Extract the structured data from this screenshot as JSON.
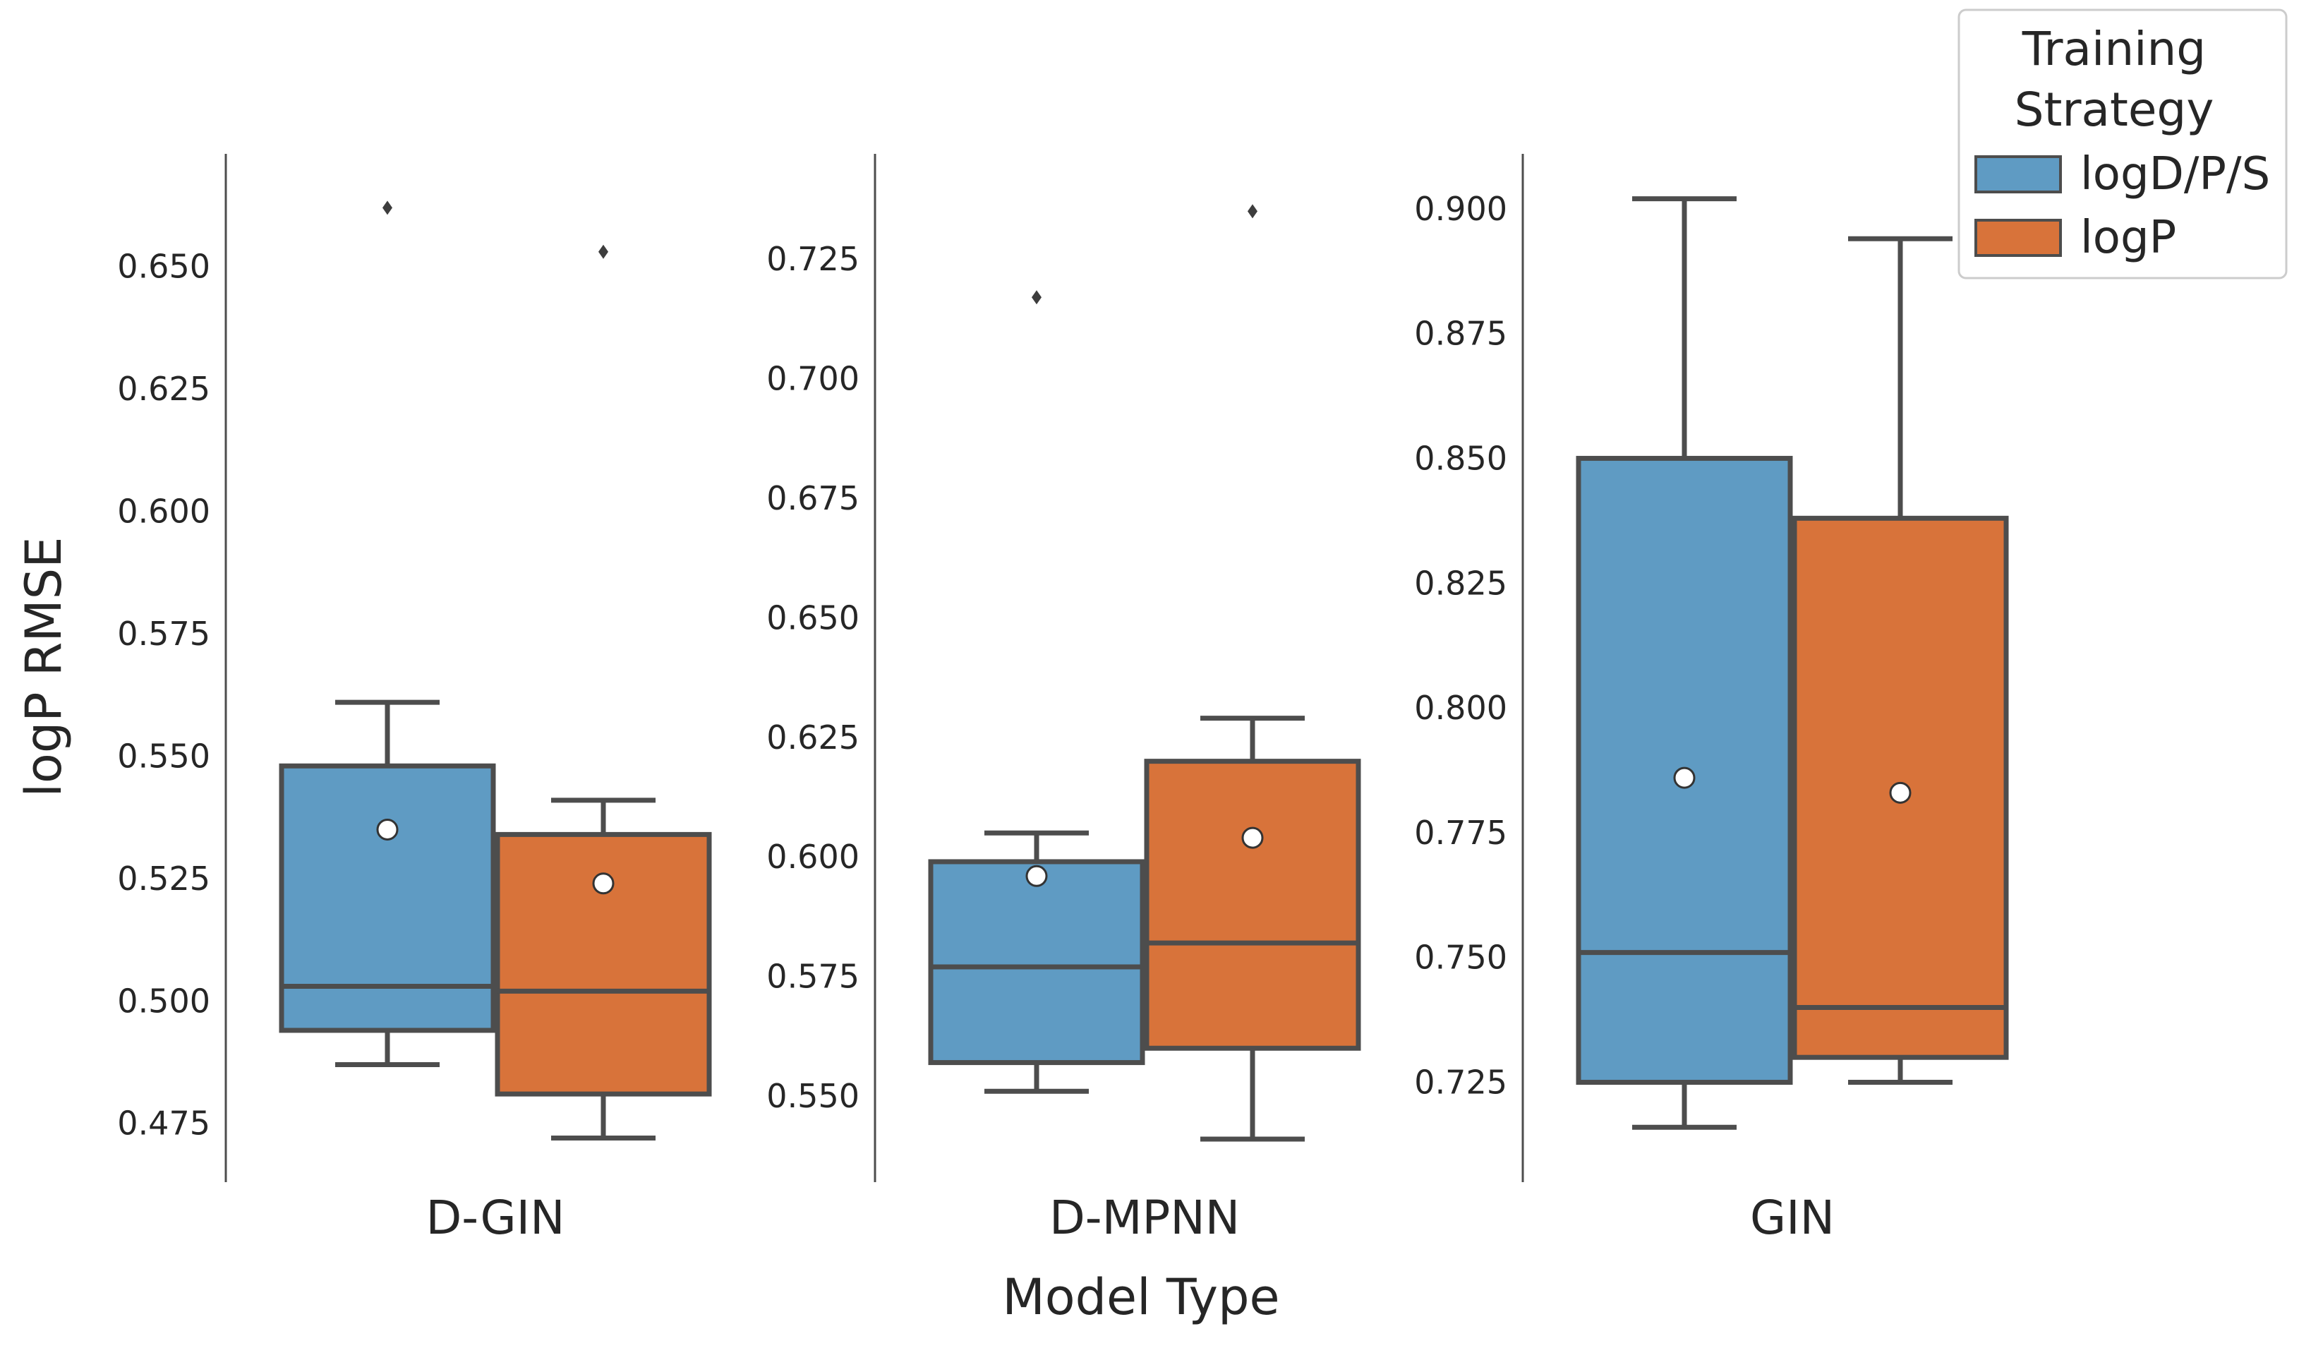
{
  "chart_data": {
    "type": "box",
    "ylabel": "logP RMSE",
    "xlabel": "Model Type",
    "grid": false,
    "legend": {
      "title_lines": [
        "Training",
        "Strategy"
      ],
      "placement": "top-right",
      "entries": [
        {
          "name": "logD/P/S",
          "color": "#5f9bc3"
        },
        {
          "name": "logP",
          "color": "#d8733a"
        }
      ]
    },
    "colors": {
      "box_edge": "#4d4d4d",
      "axis": "#4d4d4d",
      "mean_marker_fill": "#ffffff"
    },
    "panels": [
      {
        "category": "D-GIN",
        "ylim": [
          0.463,
          0.673
        ],
        "yticks": [
          "0.475",
          "0.500",
          "0.525",
          "0.550",
          "0.575",
          "0.600",
          "0.625",
          "0.650"
        ],
        "boxes": [
          {
            "series": "logD/P/S",
            "whisker_low": 0.487,
            "q1": 0.494,
            "median": 0.503,
            "q3": 0.548,
            "whisker_high": 0.561,
            "mean": 0.535,
            "outliers": [
              0.662
            ]
          },
          {
            "series": "logP",
            "whisker_low": 0.472,
            "q1": 0.481,
            "median": 0.502,
            "q3": 0.534,
            "whisker_high": 0.541,
            "mean": 0.524,
            "outliers": [
              0.653
            ]
          }
        ]
      },
      {
        "category": "D-MPNN",
        "ylim": [
          0.532,
          0.747
        ],
        "yticks": [
          "0.550",
          "0.575",
          "0.600",
          "0.625",
          "0.650",
          "0.675",
          "0.700",
          "0.725"
        ],
        "boxes": [
          {
            "series": "logD/P/S",
            "whisker_low": 0.551,
            "q1": 0.557,
            "median": 0.577,
            "q3": 0.599,
            "whisker_high": 0.605,
            "mean": 0.596,
            "outliers": [
              0.717
            ]
          },
          {
            "series": "logP",
            "whisker_low": 0.541,
            "q1": 0.56,
            "median": 0.582,
            "q3": 0.62,
            "whisker_high": 0.629,
            "mean": 0.604,
            "outliers": [
              0.735
            ]
          }
        ]
      },
      {
        "category": "GIN",
        "ylim": [
          0.705,
          0.911
        ],
        "yticks": [
          "0.725",
          "0.750",
          "0.775",
          "0.800",
          "0.825",
          "0.850",
          "0.875",
          "0.900"
        ],
        "boxes": [
          {
            "series": "logD/P/S",
            "whisker_low": 0.716,
            "q1": 0.725,
            "median": 0.751,
            "q3": 0.85,
            "whisker_high": 0.902,
            "mean": 0.786,
            "outliers": []
          },
          {
            "series": "logP",
            "whisker_low": 0.725,
            "q1": 0.73,
            "median": 0.74,
            "q3": 0.838,
            "whisker_high": 0.894,
            "mean": 0.783,
            "outliers": []
          }
        ]
      }
    ]
  }
}
